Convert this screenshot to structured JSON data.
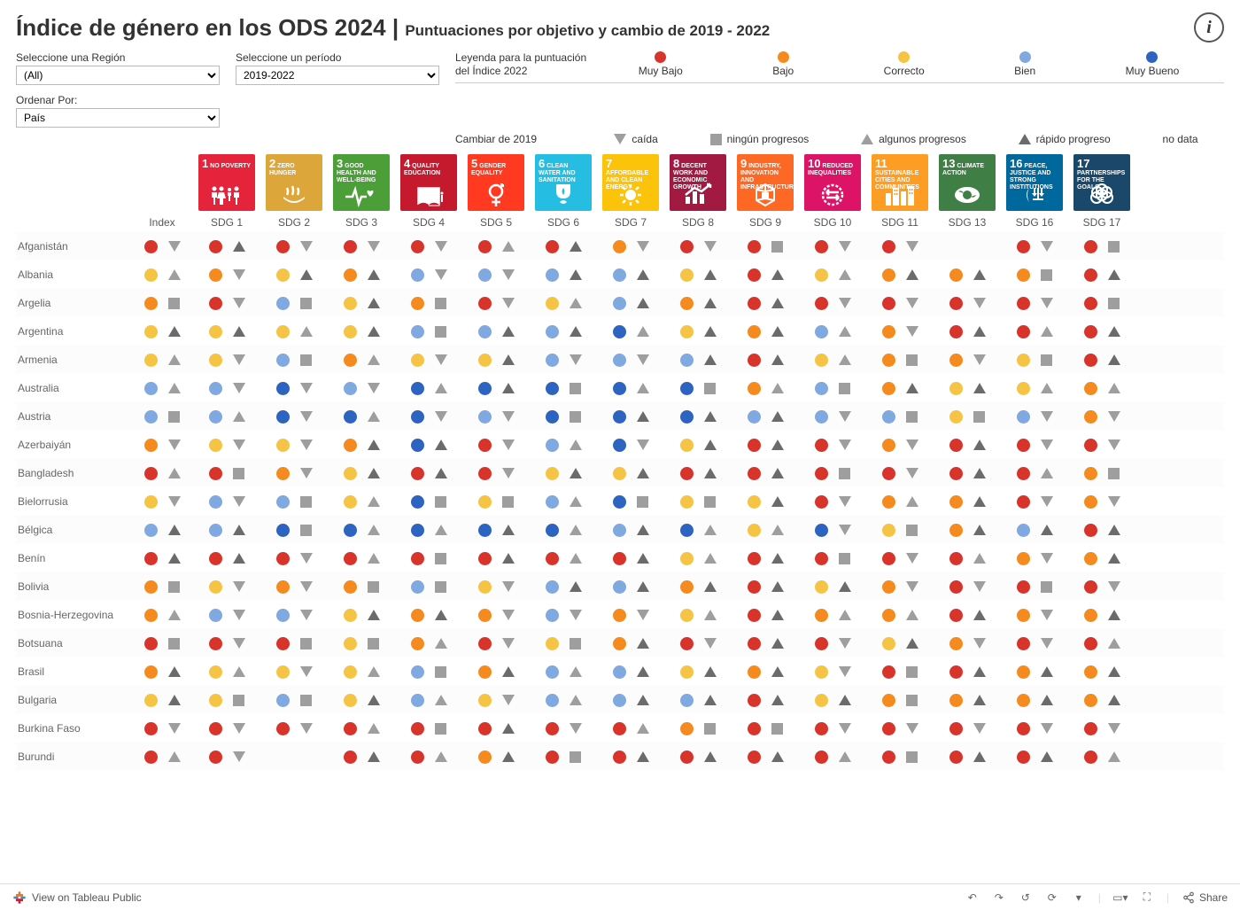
{
  "title_main": "Índice de género en los ODS 2024",
  "title_sub": "Puntuaciones por objetivo y cambio de 2019 - 2022",
  "controls": {
    "region_label": "Seleccione una Región",
    "region_value": "(All)",
    "period_label": "Seleccione un período",
    "period_value": "2019-2022",
    "sort_label": "Ordenar Por:",
    "sort_value": "País"
  },
  "legend_score": {
    "title": "Leyenda para la puntuación del Índice 2022",
    "items": [
      {
        "label": "Muy Bajo",
        "color": "#d9342b"
      },
      {
        "label": "Bajo",
        "color": "#f58b1f"
      },
      {
        "label": "Correcto",
        "color": "#f6c445"
      },
      {
        "label": "Bien",
        "color": "#7fa9e0"
      },
      {
        "label": "Muy Bueno",
        "color": "#2e64c1"
      }
    ]
  },
  "legend_change": {
    "title": "Cambiar de 2019",
    "items": [
      {
        "label": "caída",
        "shape": "down",
        "color": "#9e9e9e"
      },
      {
        "label": "ningún progresos",
        "shape": "square",
        "color": "#9e9e9e"
      },
      {
        "label": "algunos progresos",
        "shape": "up",
        "color": "#9e9e9e"
      },
      {
        "label": "rápido progreso",
        "shape": "up",
        "color": "#6b6b6b"
      },
      {
        "label": "no data",
        "shape": "none"
      }
    ]
  },
  "sdg_icons": [
    {
      "n": "1",
      "label": "NO POVERTY",
      "color": "#e5243b"
    },
    {
      "n": "2",
      "label": "ZERO HUNGER",
      "color": "#dda63a"
    },
    {
      "n": "3",
      "label": "GOOD HEALTH AND WELL-BEING",
      "color": "#4c9f38"
    },
    {
      "n": "4",
      "label": "QUALITY EDUCATION",
      "color": "#c5192d"
    },
    {
      "n": "5",
      "label": "GENDER EQUALITY",
      "color": "#ff3a21"
    },
    {
      "n": "6",
      "label": "CLEAN WATER AND SANITATION",
      "color": "#26bde2"
    },
    {
      "n": "7",
      "label": "AFFORDABLE AND CLEAN ENERGY",
      "color": "#fcc30b"
    },
    {
      "n": "8",
      "label": "DECENT WORK AND ECONOMIC GROWTH",
      "color": "#a21942"
    },
    {
      "n": "9",
      "label": "INDUSTRY, INNOVATION AND INFRASTRUCTURE",
      "color": "#fd6925"
    },
    {
      "n": "10",
      "label": "REDUCED INEQUALITIES",
      "color": "#dd1367"
    },
    {
      "n": "11",
      "label": "SUSTAINABLE CITIES AND COMMUNITIES",
      "color": "#fd9d24"
    },
    {
      "n": "13",
      "label": "CLIMATE ACTION",
      "color": "#3f7e44"
    },
    {
      "n": "16",
      "label": "PEACE, JUSTICE AND STRONG INSTITUTIONS",
      "color": "#00689d"
    },
    {
      "n": "17",
      "label": "PARTNERSHIPS FOR THE GOALS",
      "color": "#19486a"
    }
  ],
  "columns": [
    "Index",
    "SDG 1",
    "SDG 2",
    "SDG 3",
    "SDG 4",
    "SDG 5",
    "SDG 6",
    "SDG 7",
    "SDG 8",
    "SDG 9",
    "SDG 10",
    "SDG 11",
    "SDG 13",
    "SDG 16",
    "SDG 17"
  ],
  "score_colors": {
    "vl": "#d9342b",
    "l": "#f58b1f",
    "f": "#f6c445",
    "g": "#7fa9e0",
    "vg": "#2e64c1"
  },
  "change_shapes": {
    "d": {
      "shape": "down",
      "color": "#9e9e9e"
    },
    "n": {
      "shape": "square",
      "color": "#9e9e9e"
    },
    "s": {
      "shape": "up",
      "color": "#9e9e9e"
    },
    "r": {
      "shape": "up",
      "color": "#6b6b6b"
    },
    "x": {
      "shape": "none"
    }
  },
  "rows": [
    {
      "country": "Afganistán",
      "cells": [
        [
          "vl",
          "d"
        ],
        [
          "vl",
          "r"
        ],
        [
          "vl",
          "d"
        ],
        [
          "vl",
          "d"
        ],
        [
          "vl",
          "d"
        ],
        [
          "vl",
          "s"
        ],
        [
          "vl",
          "r"
        ],
        [
          "l",
          "d"
        ],
        [
          "vl",
          "d"
        ],
        [
          "vl",
          "n"
        ],
        [
          "vl",
          "d"
        ],
        [
          "vl",
          "d"
        ],
        [
          "",
          ""
        ],
        [
          "vl",
          "d"
        ],
        [
          "vl",
          "n"
        ]
      ]
    },
    {
      "country": "Albania",
      "cells": [
        [
          "f",
          "s"
        ],
        [
          "l",
          "d"
        ],
        [
          "f",
          "r"
        ],
        [
          "l",
          "r"
        ],
        [
          "g",
          "d"
        ],
        [
          "g",
          "d"
        ],
        [
          "g",
          "r"
        ],
        [
          "g",
          "r"
        ],
        [
          "f",
          "r"
        ],
        [
          "vl",
          "r"
        ],
        [
          "f",
          "s"
        ],
        [
          "l",
          "r"
        ],
        [
          "l",
          "r"
        ],
        [
          "l",
          "n"
        ],
        [
          "vl",
          "r"
        ]
      ]
    },
    {
      "country": "Argelia",
      "cells": [
        [
          "l",
          "n"
        ],
        [
          "vl",
          "d"
        ],
        [
          "g",
          "n"
        ],
        [
          "f",
          "r"
        ],
        [
          "l",
          "n"
        ],
        [
          "vl",
          "d"
        ],
        [
          "f",
          "s"
        ],
        [
          "g",
          "r"
        ],
        [
          "l",
          "r"
        ],
        [
          "vl",
          "r"
        ],
        [
          "vl",
          "d"
        ],
        [
          "vl",
          "d"
        ],
        [
          "vl",
          "d"
        ],
        [
          "vl",
          "d"
        ],
        [
          "vl",
          "n"
        ]
      ]
    },
    {
      "country": "Argentina",
      "cells": [
        [
          "f",
          "r"
        ],
        [
          "f",
          "r"
        ],
        [
          "f",
          "s"
        ],
        [
          "f",
          "r"
        ],
        [
          "g",
          "n"
        ],
        [
          "g",
          "r"
        ],
        [
          "g",
          "r"
        ],
        [
          "vg",
          "s"
        ],
        [
          "f",
          "r"
        ],
        [
          "l",
          "r"
        ],
        [
          "g",
          "s"
        ],
        [
          "l",
          "d"
        ],
        [
          "vl",
          "r"
        ],
        [
          "vl",
          "s"
        ],
        [
          "vl",
          "r"
        ]
      ]
    },
    {
      "country": "Armenia",
      "cells": [
        [
          "f",
          "s"
        ],
        [
          "f",
          "d"
        ],
        [
          "g",
          "n"
        ],
        [
          "l",
          "s"
        ],
        [
          "f",
          "d"
        ],
        [
          "f",
          "r"
        ],
        [
          "g",
          "d"
        ],
        [
          "g",
          "d"
        ],
        [
          "g",
          "r"
        ],
        [
          "vl",
          "r"
        ],
        [
          "f",
          "s"
        ],
        [
          "l",
          "n"
        ],
        [
          "l",
          "d"
        ],
        [
          "f",
          "n"
        ],
        [
          "vl",
          "r"
        ]
      ]
    },
    {
      "country": "Australia",
      "cells": [
        [
          "g",
          "s"
        ],
        [
          "g",
          "d"
        ],
        [
          "vg",
          "d"
        ],
        [
          "g",
          "d"
        ],
        [
          "vg",
          "s"
        ],
        [
          "vg",
          "r"
        ],
        [
          "vg",
          "n"
        ],
        [
          "vg",
          "s"
        ],
        [
          "vg",
          "n"
        ],
        [
          "l",
          "s"
        ],
        [
          "g",
          "n"
        ],
        [
          "l",
          "r"
        ],
        [
          "f",
          "r"
        ],
        [
          "f",
          "s"
        ],
        [
          "l",
          "s"
        ]
      ]
    },
    {
      "country": "Austria",
      "cells": [
        [
          "g",
          "n"
        ],
        [
          "g",
          "s"
        ],
        [
          "vg",
          "d"
        ],
        [
          "vg",
          "s"
        ],
        [
          "vg",
          "d"
        ],
        [
          "g",
          "d"
        ],
        [
          "vg",
          "n"
        ],
        [
          "vg",
          "r"
        ],
        [
          "vg",
          "r"
        ],
        [
          "g",
          "r"
        ],
        [
          "g",
          "d"
        ],
        [
          "g",
          "n"
        ],
        [
          "f",
          "n"
        ],
        [
          "g",
          "d"
        ],
        [
          "l",
          "d"
        ]
      ]
    },
    {
      "country": "Azerbaiyán",
      "cells": [
        [
          "l",
          "d"
        ],
        [
          "f",
          "d"
        ],
        [
          "f",
          "d"
        ],
        [
          "l",
          "r"
        ],
        [
          "vg",
          "r"
        ],
        [
          "vl",
          "d"
        ],
        [
          "g",
          "s"
        ],
        [
          "vg",
          "d"
        ],
        [
          "f",
          "r"
        ],
        [
          "vl",
          "r"
        ],
        [
          "vl",
          "d"
        ],
        [
          "l",
          "d"
        ],
        [
          "vl",
          "r"
        ],
        [
          "vl",
          "d"
        ],
        [
          "vl",
          "d"
        ]
      ]
    },
    {
      "country": "Bangladesh",
      "cells": [
        [
          "vl",
          "s"
        ],
        [
          "vl",
          "n"
        ],
        [
          "l",
          "d"
        ],
        [
          "f",
          "r"
        ],
        [
          "vl",
          "r"
        ],
        [
          "vl",
          "d"
        ],
        [
          "f",
          "r"
        ],
        [
          "f",
          "r"
        ],
        [
          "vl",
          "r"
        ],
        [
          "vl",
          "r"
        ],
        [
          "vl",
          "n"
        ],
        [
          "vl",
          "d"
        ],
        [
          "vl",
          "r"
        ],
        [
          "vl",
          "s"
        ],
        [
          "l",
          "n"
        ]
      ]
    },
    {
      "country": "Bielorrusia",
      "cells": [
        [
          "f",
          "d"
        ],
        [
          "g",
          "d"
        ],
        [
          "g",
          "n"
        ],
        [
          "f",
          "s"
        ],
        [
          "vg",
          "n"
        ],
        [
          "f",
          "n"
        ],
        [
          "g",
          "s"
        ],
        [
          "vg",
          "n"
        ],
        [
          "f",
          "n"
        ],
        [
          "f",
          "r"
        ],
        [
          "vl",
          "d"
        ],
        [
          "l",
          "s"
        ],
        [
          "l",
          "r"
        ],
        [
          "vl",
          "d"
        ],
        [
          "l",
          "d"
        ]
      ]
    },
    {
      "country": "Bélgica",
      "cells": [
        [
          "g",
          "r"
        ],
        [
          "g",
          "r"
        ],
        [
          "vg",
          "n"
        ],
        [
          "vg",
          "s"
        ],
        [
          "vg",
          "s"
        ],
        [
          "vg",
          "r"
        ],
        [
          "vg",
          "s"
        ],
        [
          "g",
          "r"
        ],
        [
          "vg",
          "s"
        ],
        [
          "f",
          "s"
        ],
        [
          "vg",
          "d"
        ],
        [
          "f",
          "n"
        ],
        [
          "l",
          "r"
        ],
        [
          "g",
          "r"
        ],
        [
          "vl",
          "r"
        ]
      ]
    },
    {
      "country": "Benín",
      "cells": [
        [
          "vl",
          "r"
        ],
        [
          "vl",
          "r"
        ],
        [
          "vl",
          "d"
        ],
        [
          "vl",
          "s"
        ],
        [
          "vl",
          "n"
        ],
        [
          "vl",
          "r"
        ],
        [
          "vl",
          "s"
        ],
        [
          "vl",
          "r"
        ],
        [
          "f",
          "s"
        ],
        [
          "vl",
          "r"
        ],
        [
          "vl",
          "n"
        ],
        [
          "vl",
          "d"
        ],
        [
          "vl",
          "s"
        ],
        [
          "l",
          "d"
        ],
        [
          "l",
          "r"
        ]
      ]
    },
    {
      "country": "Bolivia",
      "cells": [
        [
          "l",
          "n"
        ],
        [
          "f",
          "d"
        ],
        [
          "l",
          "d"
        ],
        [
          "l",
          "n"
        ],
        [
          "g",
          "n"
        ],
        [
          "f",
          "d"
        ],
        [
          "g",
          "r"
        ],
        [
          "g",
          "r"
        ],
        [
          "l",
          "r"
        ],
        [
          "vl",
          "r"
        ],
        [
          "f",
          "r"
        ],
        [
          "l",
          "d"
        ],
        [
          "vl",
          "d"
        ],
        [
          "vl",
          "n"
        ],
        [
          "vl",
          "d"
        ]
      ]
    },
    {
      "country": "Bosnia-Herzegovina",
      "cells": [
        [
          "l",
          "s"
        ],
        [
          "g",
          "d"
        ],
        [
          "g",
          "d"
        ],
        [
          "f",
          "r"
        ],
        [
          "l",
          "r"
        ],
        [
          "l",
          "d"
        ],
        [
          "g",
          "d"
        ],
        [
          "l",
          "d"
        ],
        [
          "f",
          "s"
        ],
        [
          "vl",
          "r"
        ],
        [
          "l",
          "s"
        ],
        [
          "l",
          "s"
        ],
        [
          "vl",
          "r"
        ],
        [
          "l",
          "d"
        ],
        [
          "l",
          "r"
        ]
      ]
    },
    {
      "country": "Botsuana",
      "cells": [
        [
          "vl",
          "n"
        ],
        [
          "vl",
          "d"
        ],
        [
          "vl",
          "n"
        ],
        [
          "f",
          "n"
        ],
        [
          "l",
          "s"
        ],
        [
          "vl",
          "d"
        ],
        [
          "f",
          "n"
        ],
        [
          "l",
          "r"
        ],
        [
          "vl",
          "d"
        ],
        [
          "vl",
          "r"
        ],
        [
          "vl",
          "d"
        ],
        [
          "f",
          "r"
        ],
        [
          "l",
          "d"
        ],
        [
          "vl",
          "d"
        ],
        [
          "vl",
          "s"
        ]
      ]
    },
    {
      "country": "Brasil",
      "cells": [
        [
          "l",
          "r"
        ],
        [
          "f",
          "s"
        ],
        [
          "f",
          "d"
        ],
        [
          "f",
          "s"
        ],
        [
          "g",
          "n"
        ],
        [
          "l",
          "r"
        ],
        [
          "g",
          "s"
        ],
        [
          "g",
          "r"
        ],
        [
          "f",
          "r"
        ],
        [
          "l",
          "r"
        ],
        [
          "f",
          "d"
        ],
        [
          "vl",
          "n"
        ],
        [
          "vl",
          "r"
        ],
        [
          "l",
          "r"
        ],
        [
          "l",
          "r"
        ]
      ]
    },
    {
      "country": "Bulgaria",
      "cells": [
        [
          "f",
          "r"
        ],
        [
          "f",
          "n"
        ],
        [
          "g",
          "n"
        ],
        [
          "f",
          "r"
        ],
        [
          "g",
          "s"
        ],
        [
          "f",
          "d"
        ],
        [
          "g",
          "s"
        ],
        [
          "g",
          "r"
        ],
        [
          "g",
          "r"
        ],
        [
          "vl",
          "r"
        ],
        [
          "f",
          "r"
        ],
        [
          "l",
          "n"
        ],
        [
          "l",
          "r"
        ],
        [
          "l",
          "r"
        ],
        [
          "l",
          "r"
        ]
      ]
    },
    {
      "country": "Burkina Faso",
      "cells": [
        [
          "vl",
          "d"
        ],
        [
          "vl",
          "d"
        ],
        [
          "vl",
          "d"
        ],
        [
          "vl",
          "s"
        ],
        [
          "vl",
          "n"
        ],
        [
          "vl",
          "r"
        ],
        [
          "vl",
          "d"
        ],
        [
          "vl",
          "s"
        ],
        [
          "l",
          "n"
        ],
        [
          "vl",
          "n"
        ],
        [
          "vl",
          "d"
        ],
        [
          "vl",
          "d"
        ],
        [
          "vl",
          "d"
        ],
        [
          "vl",
          "d"
        ],
        [
          "vl",
          "d"
        ]
      ]
    },
    {
      "country": "Burundi",
      "cells": [
        [
          "vl",
          "s"
        ],
        [
          "vl",
          "d"
        ],
        [
          "",
          ""
        ],
        [
          "vl",
          "r"
        ],
        [
          "vl",
          "s"
        ],
        [
          "l",
          "r"
        ],
        [
          "vl",
          "n"
        ],
        [
          "vl",
          "r"
        ],
        [
          "vl",
          "r"
        ],
        [
          "vl",
          "r"
        ],
        [
          "vl",
          "s"
        ],
        [
          "vl",
          "n"
        ],
        [
          "vl",
          "r"
        ],
        [
          "vl",
          "r"
        ],
        [
          "vl",
          "s"
        ]
      ]
    }
  ],
  "footer": {
    "view_label": "View on Tableau Public",
    "share_label": "Share"
  }
}
